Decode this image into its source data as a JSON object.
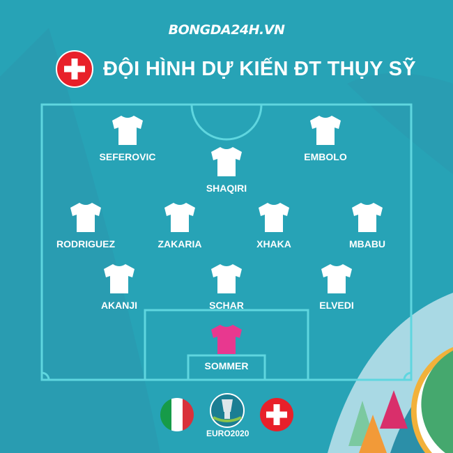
{
  "brand": "BONGDA24H.VN",
  "title": "ĐỘI HÌNH DỰ KIẾN ĐT THỤY SỸ",
  "watermark": "BONGDA24H.VN",
  "players": [
    {
      "name": "SEFEROVIC",
      "role": "outfield"
    },
    {
      "name": "EMBOLO",
      "role": "outfield"
    },
    {
      "name": "SHAQIRI",
      "role": "outfield"
    },
    {
      "name": "RODRIGUEZ",
      "role": "outfield"
    },
    {
      "name": "ZAKARIA",
      "role": "outfield"
    },
    {
      "name": "XHAKA",
      "role": "outfield"
    },
    {
      "name": "MBABU",
      "role": "outfield"
    },
    {
      "name": "AKANJI",
      "role": "outfield"
    },
    {
      "name": "SCHAR",
      "role": "outfield"
    },
    {
      "name": "ELVEDI",
      "role": "outfield"
    },
    {
      "name": "SOMMER",
      "role": "goalkeeper"
    }
  ],
  "colors": {
    "background": "#27a3b6",
    "pitch_lines": "#5fd6df",
    "outfield_shirt": "#ffffff",
    "goalkeeper_shirt": "#e8388f",
    "swiss_red": "#e8202a"
  },
  "footer": {
    "left_flag": "italy-flag",
    "logo_text": "EURO2020",
    "right_flag": "switzerland-flag"
  }
}
